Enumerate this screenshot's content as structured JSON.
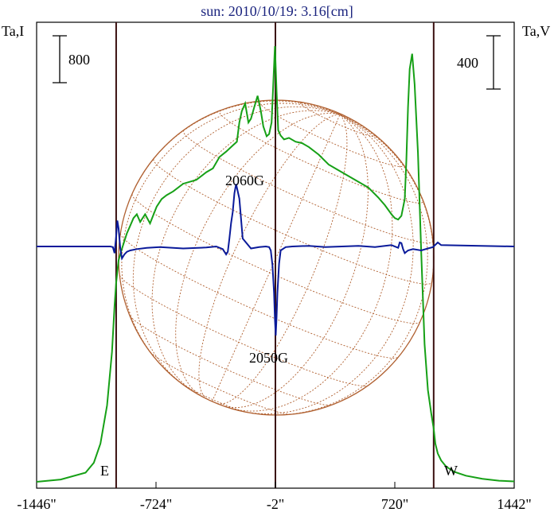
{
  "title": "sun: 2010/10/19: 3.16[cm]",
  "chart_data": {
    "type": "line",
    "title": "sun: 2010/10/19: 3.16[cm]",
    "left_axis_label": "Ta,I",
    "right_axis_label": "Ta,V",
    "left_scale_bar": "800",
    "right_scale_bar": "400",
    "x_ticks": [
      "-1446\"",
      "-724\"",
      "-2\"",
      "720\"",
      "1442\""
    ],
    "x_tick_values": [
      -1446,
      -724,
      -2,
      720,
      1442
    ],
    "xlim": [
      -1446,
      1442
    ],
    "limb_markers": {
      "east": "E",
      "west": "W"
    },
    "limb_positions": [
      -965,
      955
    ],
    "annotations": [
      "2060G",
      "2050G"
    ],
    "colors": {
      "intensity": "#16a016",
      "polarization": "#0a1a9a",
      "disk": "#b06030",
      "limb": "#3a1010",
      "title": "#1a237e"
    },
    "series": [
      {
        "name": "I",
        "x": [
          -1446,
          -1300,
          -1150,
          -1100,
          -1060,
          -1020,
          -990,
          -975,
          -965,
          -958,
          -950,
          -930,
          -900,
          -880,
          -860,
          -840,
          -820,
          -790,
          -760,
          -720,
          -690,
          -660,
          -620,
          -560,
          -480,
          -420,
          -380,
          -340,
          -300,
          -260,
          -235,
          -220,
          -205,
          -185,
          -165,
          -150,
          -130,
          -110,
          -90,
          -75,
          -55,
          -40,
          -25,
          -15,
          -5,
          5,
          15,
          30,
          50,
          80,
          120,
          160,
          200,
          260,
          320,
          400,
          480,
          560,
          620,
          660,
          700,
          720,
          740,
          760,
          780,
          790,
          800,
          810,
          825,
          840,
          860,
          880,
          900,
          920,
          940,
          955,
          965,
          980,
          1000,
          1030,
          1080,
          1150,
          1250,
          1350,
          1442
        ],
        "y": [
          0,
          30,
          120,
          250,
          500,
          1000,
          1700,
          2300,
          2600,
          2750,
          2900,
          3050,
          3250,
          3350,
          3450,
          3500,
          3400,
          3500,
          3380,
          3600,
          3700,
          3750,
          3800,
          3900,
          3950,
          4050,
          4100,
          4250,
          4320,
          4400,
          4450,
          4700,
          4850,
          4950,
          4700,
          4750,
          4900,
          5050,
          4850,
          4650,
          4520,
          4550,
          4700,
          5200,
          5700,
          5100,
          4600,
          4530,
          4480,
          4500,
          4450,
          4430,
          4380,
          4280,
          4150,
          4050,
          3950,
          3850,
          3720,
          3620,
          3500,
          3450,
          3430,
          3480,
          3700,
          4200,
          4900,
          5400,
          5600,
          5200,
          4300,
          3000,
          1800,
          1200,
          900,
          700,
          500,
          370,
          280,
          200,
          130,
          80,
          40,
          15,
          5
        ]
      },
      {
        "name": "V",
        "x": [
          -1446,
          -1000,
          -985,
          -975,
          -965,
          -958,
          -950,
          -940,
          -930,
          -915,
          -900,
          -880,
          -840,
          -780,
          -700,
          -560,
          -420,
          -360,
          -320,
          -300,
          -290,
          -280,
          -270,
          -260,
          -250,
          -240,
          -220,
          -200,
          -150,
          -100,
          -60,
          -40,
          -30,
          -20,
          -10,
          -5,
          0,
          5,
          10,
          20,
          30,
          60,
          100,
          200,
          300,
          400,
          500,
          600,
          700,
          740,
          750,
          760,
          770,
          780,
          800,
          830,
          880,
          920,
          950,
          980,
          1000,
          1442
        ],
        "y": [
          0,
          0,
          -10,
          -100,
          150,
          390,
          270,
          -30,
          -180,
          -120,
          -80,
          -60,
          -40,
          -20,
          -10,
          -30,
          -15,
          0,
          -40,
          -120,
          -80,
          120,
          350,
          520,
          800,
          940,
          720,
          120,
          -30,
          -10,
          0,
          -10,
          -60,
          -280,
          -700,
          -1100,
          -1340,
          -1050,
          -700,
          -260,
          -60,
          -10,
          0,
          10,
          -10,
          0,
          10,
          -10,
          20,
          -20,
          60,
          50,
          -40,
          -100,
          -60,
          -40,
          -60,
          -30,
          -10,
          60,
          20,
          0
        ]
      }
    ]
  }
}
